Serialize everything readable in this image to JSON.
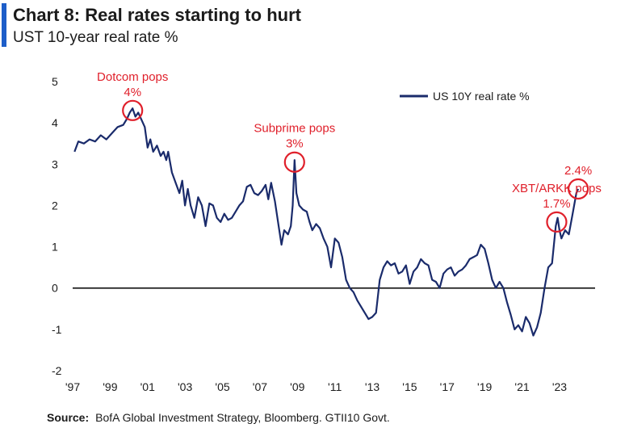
{
  "header": {
    "title": "Chart 8: Real rates starting to hurt",
    "subtitle": "UST 10-year real rate %",
    "accent_color": "#1d5ec9"
  },
  "footer": {
    "source_label": "Source:",
    "source_text": "BofA Global Investment Strategy, Bloomberg. GTII10 Govt."
  },
  "chart_data": {
    "type": "line",
    "title": "Chart 8: Real rates starting to hurt",
    "subtitle": "UST 10-year real rate %",
    "xlabel": "",
    "ylabel": "",
    "xlim": [
      1997.0,
      2024.9
    ],
    "ylim": [
      -2,
      5
    ],
    "yticks": [
      5,
      4,
      3,
      2,
      1,
      0,
      -1,
      -2
    ],
    "xticks": [
      {
        "x": 1997,
        "label": "'97"
      },
      {
        "x": 1999,
        "label": "'99"
      },
      {
        "x": 2001,
        "label": "'01"
      },
      {
        "x": 2003,
        "label": "'03"
      },
      {
        "x": 2005,
        "label": "'05"
      },
      {
        "x": 2007,
        "label": "'07"
      },
      {
        "x": 2009,
        "label": "'09"
      },
      {
        "x": 2011,
        "label": "'11"
      },
      {
        "x": 2013,
        "label": "'13"
      },
      {
        "x": 2015,
        "label": "'15"
      },
      {
        "x": 2017,
        "label": "'17"
      },
      {
        "x": 2019,
        "label": "'19"
      },
      {
        "x": 2021,
        "label": "'21"
      },
      {
        "x": 2023,
        "label": "'23"
      }
    ],
    "zero_line": true,
    "grid": false,
    "legend_position": "top-right",
    "series": [
      {
        "name": "US 10Y real rate %",
        "color": "#1a2b6b",
        "points": [
          [
            1997.1,
            3.3
          ],
          [
            1997.3,
            3.55
          ],
          [
            1997.6,
            3.5
          ],
          [
            1997.9,
            3.6
          ],
          [
            1998.2,
            3.55
          ],
          [
            1998.5,
            3.7
          ],
          [
            1998.8,
            3.6
          ],
          [
            1999.1,
            3.75
          ],
          [
            1999.4,
            3.9
          ],
          [
            1999.7,
            3.95
          ],
          [
            1999.9,
            4.1
          ],
          [
            2000.05,
            4.25
          ],
          [
            2000.2,
            4.35
          ],
          [
            2000.35,
            4.15
          ],
          [
            2000.5,
            4.25
          ],
          [
            2000.7,
            4.05
          ],
          [
            2000.85,
            3.9
          ],
          [
            2001.0,
            3.4
          ],
          [
            2001.15,
            3.6
          ],
          [
            2001.3,
            3.3
          ],
          [
            2001.5,
            3.45
          ],
          [
            2001.7,
            3.2
          ],
          [
            2001.85,
            3.3
          ],
          [
            2002.0,
            3.1
          ],
          [
            2002.1,
            3.3
          ],
          [
            2002.3,
            2.8
          ],
          [
            2002.5,
            2.55
          ],
          [
            2002.7,
            2.3
          ],
          [
            2002.85,
            2.6
          ],
          [
            2003.0,
            2.0
          ],
          [
            2003.15,
            2.4
          ],
          [
            2003.3,
            2.0
          ],
          [
            2003.5,
            1.7
          ],
          [
            2003.7,
            2.2
          ],
          [
            2003.9,
            2.0
          ],
          [
            2004.1,
            1.5
          ],
          [
            2004.3,
            2.05
          ],
          [
            2004.5,
            2.0
          ],
          [
            2004.7,
            1.7
          ],
          [
            2004.9,
            1.6
          ],
          [
            2005.1,
            1.8
          ],
          [
            2005.3,
            1.65
          ],
          [
            2005.5,
            1.7
          ],
          [
            2005.7,
            1.85
          ],
          [
            2005.9,
            2.0
          ],
          [
            2006.1,
            2.1
          ],
          [
            2006.3,
            2.45
          ],
          [
            2006.5,
            2.5
          ],
          [
            2006.7,
            2.3
          ],
          [
            2006.9,
            2.25
          ],
          [
            2007.1,
            2.35
          ],
          [
            2007.3,
            2.5
          ],
          [
            2007.45,
            2.15
          ],
          [
            2007.6,
            2.55
          ],
          [
            2007.8,
            2.1
          ],
          [
            2008.0,
            1.5
          ],
          [
            2008.15,
            1.05
          ],
          [
            2008.3,
            1.4
          ],
          [
            2008.5,
            1.3
          ],
          [
            2008.65,
            1.5
          ],
          [
            2008.75,
            2.0
          ],
          [
            2008.85,
            3.1
          ],
          [
            2008.95,
            2.3
          ],
          [
            2009.1,
            2.0
          ],
          [
            2009.3,
            1.9
          ],
          [
            2009.5,
            1.85
          ],
          [
            2009.65,
            1.6
          ],
          [
            2009.8,
            1.4
          ],
          [
            2010.0,
            1.55
          ],
          [
            2010.2,
            1.45
          ],
          [
            2010.4,
            1.2
          ],
          [
            2010.6,
            1.0
          ],
          [
            2010.8,
            0.5
          ],
          [
            2011.0,
            1.2
          ],
          [
            2011.2,
            1.1
          ],
          [
            2011.4,
            0.75
          ],
          [
            2011.6,
            0.2
          ],
          [
            2011.8,
            0.0
          ],
          [
            2012.0,
            -0.1
          ],
          [
            2012.2,
            -0.3
          ],
          [
            2012.4,
            -0.45
          ],
          [
            2012.6,
            -0.6
          ],
          [
            2012.8,
            -0.75
          ],
          [
            2013.0,
            -0.7
          ],
          [
            2013.2,
            -0.6
          ],
          [
            2013.4,
            0.2
          ],
          [
            2013.6,
            0.5
          ],
          [
            2013.8,
            0.65
          ],
          [
            2014.0,
            0.55
          ],
          [
            2014.2,
            0.6
          ],
          [
            2014.4,
            0.35
          ],
          [
            2014.6,
            0.4
          ],
          [
            2014.8,
            0.55
          ],
          [
            2015.0,
            0.1
          ],
          [
            2015.2,
            0.4
          ],
          [
            2015.4,
            0.5
          ],
          [
            2015.6,
            0.7
          ],
          [
            2015.8,
            0.6
          ],
          [
            2016.0,
            0.55
          ],
          [
            2016.2,
            0.2
          ],
          [
            2016.4,
            0.15
          ],
          [
            2016.6,
            0.0
          ],
          [
            2016.8,
            0.35
          ],
          [
            2017.0,
            0.45
          ],
          [
            2017.2,
            0.5
          ],
          [
            2017.4,
            0.3
          ],
          [
            2017.6,
            0.4
          ],
          [
            2017.8,
            0.45
          ],
          [
            2018.0,
            0.55
          ],
          [
            2018.2,
            0.7
          ],
          [
            2018.4,
            0.75
          ],
          [
            2018.6,
            0.8
          ],
          [
            2018.8,
            1.05
          ],
          [
            2019.0,
            0.95
          ],
          [
            2019.2,
            0.6
          ],
          [
            2019.4,
            0.2
          ],
          [
            2019.6,
            0.0
          ],
          [
            2019.8,
            0.15
          ],
          [
            2020.0,
            0.0
          ],
          [
            2020.2,
            -0.35
          ],
          [
            2020.4,
            -0.65
          ],
          [
            2020.6,
            -1.0
          ],
          [
            2020.8,
            -0.9
          ],
          [
            2021.0,
            -1.05
          ],
          [
            2021.2,
            -0.7
          ],
          [
            2021.4,
            -0.85
          ],
          [
            2021.6,
            -1.15
          ],
          [
            2021.8,
            -0.95
          ],
          [
            2022.0,
            -0.6
          ],
          [
            2022.2,
            0.0
          ],
          [
            2022.4,
            0.5
          ],
          [
            2022.6,
            0.6
          ],
          [
            2022.8,
            1.5
          ],
          [
            2022.9,
            1.7
          ],
          [
            2023.0,
            1.4
          ],
          [
            2023.1,
            1.2
          ],
          [
            2023.3,
            1.4
          ],
          [
            2023.5,
            1.3
          ],
          [
            2023.7,
            1.8
          ],
          [
            2023.9,
            2.3
          ],
          [
            2024.0,
            2.4
          ]
        ]
      }
    ],
    "annotations": [
      {
        "text": "Dotcom pops",
        "value_label": "4%",
        "x": 2000.2,
        "y": 4.3,
        "color": "#e0202b"
      },
      {
        "text": "Subprime pops",
        "value_label": "3%",
        "x": 2008.85,
        "y": 3.05,
        "color": "#e0202b"
      },
      {
        "text": "XBT/ARKK pops",
        "value_label": "1.7%",
        "x": 2022.85,
        "y": 1.6,
        "color": "#e0202b"
      },
      {
        "text": "",
        "value_label": "2.4%",
        "x": 2024.0,
        "y": 2.4,
        "color": "#e0202b"
      }
    ]
  }
}
